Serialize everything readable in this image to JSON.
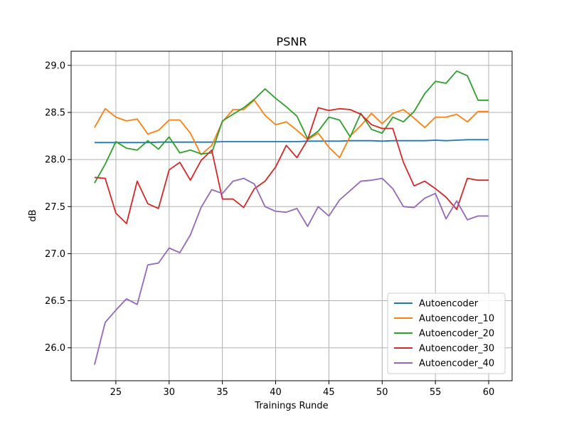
{
  "chart_data": {
    "type": "line",
    "title": "PSNR",
    "xlabel": "Trainings Runde",
    "ylabel": "dB",
    "xlim": [
      20.8,
      62.2
    ],
    "ylim": [
      25.65,
      29.15
    ],
    "xticks": [
      "25",
      "30",
      "35",
      "40",
      "45",
      "50",
      "55",
      "60"
    ],
    "yticks": [
      "26.0",
      "26.5",
      "27.0",
      "27.5",
      "28.0",
      "28.5",
      "29.0"
    ],
    "grid": true,
    "legend_position": "lower-right",
    "x": [
      23,
      24,
      25,
      26,
      27,
      28,
      29,
      30,
      31,
      32,
      33,
      34,
      35,
      36,
      37,
      38,
      39,
      40,
      41,
      42,
      43,
      44,
      45,
      46,
      47,
      48,
      49,
      50,
      51,
      52,
      53,
      54,
      55,
      56,
      57,
      58,
      59,
      60
    ],
    "series": [
      {
        "name": "Autoencoder",
        "color": "#1f77b4",
        "values": [
          28.18,
          28.18,
          28.18,
          28.18,
          28.18,
          28.18,
          28.185,
          28.185,
          28.185,
          28.185,
          28.185,
          28.185,
          28.19,
          28.19,
          28.19,
          28.19,
          28.19,
          28.19,
          28.19,
          28.19,
          28.195,
          28.195,
          28.195,
          28.195,
          28.2,
          28.2,
          28.2,
          28.195,
          28.2,
          28.2,
          28.2,
          28.2,
          28.205,
          28.2,
          28.205,
          28.21,
          28.21,
          28.21
        ]
      },
      {
        "name": "Autoencoder_10",
        "color": "#ff7f0e",
        "values": [
          28.34,
          28.54,
          28.45,
          28.41,
          28.43,
          28.27,
          28.31,
          28.42,
          28.42,
          28.28,
          28.05,
          28.15,
          28.4,
          28.53,
          28.53,
          28.63,
          28.47,
          28.37,
          28.4,
          28.31,
          28.21,
          28.28,
          28.13,
          28.02,
          28.25,
          28.36,
          28.49,
          28.38,
          28.49,
          28.53,
          28.44,
          28.34,
          28.45,
          28.45,
          28.48,
          28.4,
          28.51,
          28.51
        ]
      },
      {
        "name": "Autoencoder_20",
        "color": "#2ca02c",
        "values": [
          27.75,
          27.95,
          28.19,
          28.12,
          28.1,
          28.2,
          28.11,
          28.24,
          28.07,
          28.1,
          28.06,
          28.07,
          28.41,
          28.48,
          28.55,
          28.64,
          28.75,
          28.65,
          28.56,
          28.46,
          28.22,
          28.3,
          28.45,
          28.42,
          28.24,
          28.49,
          28.32,
          28.28,
          28.45,
          28.4,
          28.51,
          28.7,
          28.83,
          28.81,
          28.94,
          28.89,
          28.63,
          28.63
        ]
      },
      {
        "name": "Autoencoder_30",
        "color": "#d62728",
        "values": [
          27.81,
          27.8,
          27.43,
          27.32,
          27.77,
          27.53,
          27.48,
          27.89,
          27.97,
          27.78,
          27.99,
          28.1,
          27.58,
          27.58,
          27.49,
          27.69,
          27.77,
          27.92,
          28.15,
          28.02,
          28.21,
          28.55,
          28.52,
          28.54,
          28.53,
          28.48,
          28.37,
          28.33,
          28.33,
          27.97,
          27.72,
          27.77,
          27.69,
          27.6,
          27.47,
          27.8,
          27.78,
          27.78
        ]
      },
      {
        "name": "Autoencoder_40",
        "color": "#9467bd",
        "values": [
          25.82,
          26.27,
          26.4,
          26.52,
          26.46,
          26.88,
          26.9,
          27.06,
          27.01,
          27.2,
          27.49,
          27.68,
          27.64,
          27.77,
          27.8,
          27.74,
          27.5,
          27.45,
          27.44,
          27.48,
          27.29,
          27.5,
          27.4,
          27.57,
          27.67,
          27.77,
          27.78,
          27.8,
          27.69,
          27.5,
          27.49,
          27.59,
          27.64,
          27.37,
          27.56,
          27.36,
          27.4,
          27.4
        ]
      }
    ]
  }
}
